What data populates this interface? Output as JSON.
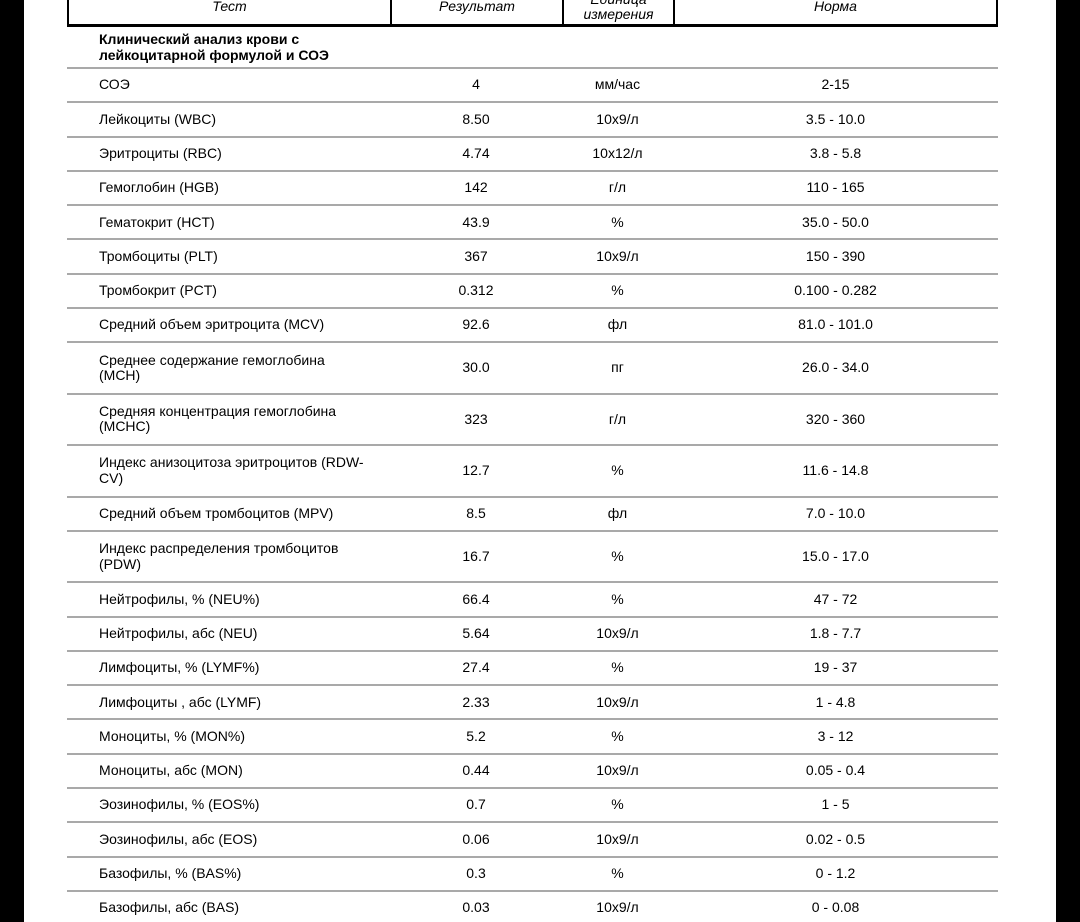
{
  "viewer": {
    "background_color": "#000000",
    "paper_color": "#ffffff",
    "divider_color": "#a9a9a9"
  },
  "table": {
    "columns": {
      "test": "Тест",
      "result": "Результат",
      "unit": "Единица\nизмерения",
      "norm": "Норма"
    },
    "section_title": "Клинический анализ крови с\nлейкоцитарной формулой и СОЭ",
    "rows": [
      {
        "test": "СОЭ",
        "result": "4",
        "unit": "мм/час",
        "norm": "2-15"
      },
      {
        "test": "Лейкоциты (WBC)",
        "result": "8.50",
        "unit": "10х9/л",
        "norm": "3.5 - 10.0"
      },
      {
        "test": "Эритроциты (RBC)",
        "result": "4.74",
        "unit": "10х12/л",
        "norm": "3.8 - 5.8"
      },
      {
        "test": "Гемоглобин (HGB)",
        "result": "142",
        "unit": "г/л",
        "norm": "110 - 165"
      },
      {
        "test": "Гематокрит (HCT)",
        "result": "43.9",
        "unit": "%",
        "norm": "35.0 - 50.0"
      },
      {
        "test": "Тромбоциты (PLT)",
        "result": "367",
        "unit": "10х9/л",
        "norm": "150 - 390"
      },
      {
        "test": "Тромбокрит (PCT)",
        "result": "0.312",
        "unit": "%",
        "norm": "0.100 - 0.282"
      },
      {
        "test": "Средний объем эритроцита (MCV)",
        "result": "92.6",
        "unit": "фл",
        "norm": "81.0 - 101.0"
      },
      {
        "test": "Среднее содержание гемоглобина\n(MCH)",
        "result": "30.0",
        "unit": "пг",
        "norm": "26.0 - 34.0"
      },
      {
        "test": "Средняя концентрация гемоглобина\n(MCHC)",
        "result": "323",
        "unit": "г/л",
        "norm": "320 - 360"
      },
      {
        "test": "Индекс анизоцитоза эритроцитов (RDW-\nCV)",
        "result": "12.7",
        "unit": "%",
        "norm": "11.6 - 14.8"
      },
      {
        "test": "Средний объем тромбоцитов (MPV)",
        "result": "8.5",
        "unit": "фл",
        "norm": "7.0 - 10.0"
      },
      {
        "test": "Индекс распределения тромбоцитов\n(PDW)",
        "result": "16.7",
        "unit": "%",
        "norm": "15.0 - 17.0"
      },
      {
        "test": "Нейтрофилы, % (NEU%)",
        "result": "66.4",
        "unit": "%",
        "norm": "47 - 72"
      },
      {
        "test": "Нейтрофилы, абс (NEU)",
        "result": "5.64",
        "unit": "10х9/л",
        "norm": "1.8 - 7.7"
      },
      {
        "test": "Лимфоциты, % (LYMF%)",
        "result": "27.4",
        "unit": "%",
        "norm": "19 - 37"
      },
      {
        "test": "Лимфоциты , абс (LYMF)",
        "result": "2.33",
        "unit": "10х9/л",
        "norm": "1 - 4.8"
      },
      {
        "test": "Моноциты, % (MON%)",
        "result": "5.2",
        "unit": "%",
        "norm": "3 - 12"
      },
      {
        "test": "Моноциты, абс (MON)",
        "result": "0.44",
        "unit": "10х9/л",
        "norm": "0.05 - 0.4"
      },
      {
        "test": "Эозинофилы, % (EOS%)",
        "result": "0.7",
        "unit": "%",
        "norm": "1 - 5"
      },
      {
        "test": "Эозинофилы, абс (EOS)",
        "result": "0.06",
        "unit": "10х9/л",
        "norm": "0.02 - 0.5"
      },
      {
        "test": "Базофилы, % (BAS%)",
        "result": "0.3",
        "unit": "%",
        "norm": "0 - 1.2"
      },
      {
        "test": "Базофилы, абс (BAS)",
        "result": "0.03",
        "unit": "10х9/л",
        "norm": "0 - 0.08"
      }
    ]
  }
}
